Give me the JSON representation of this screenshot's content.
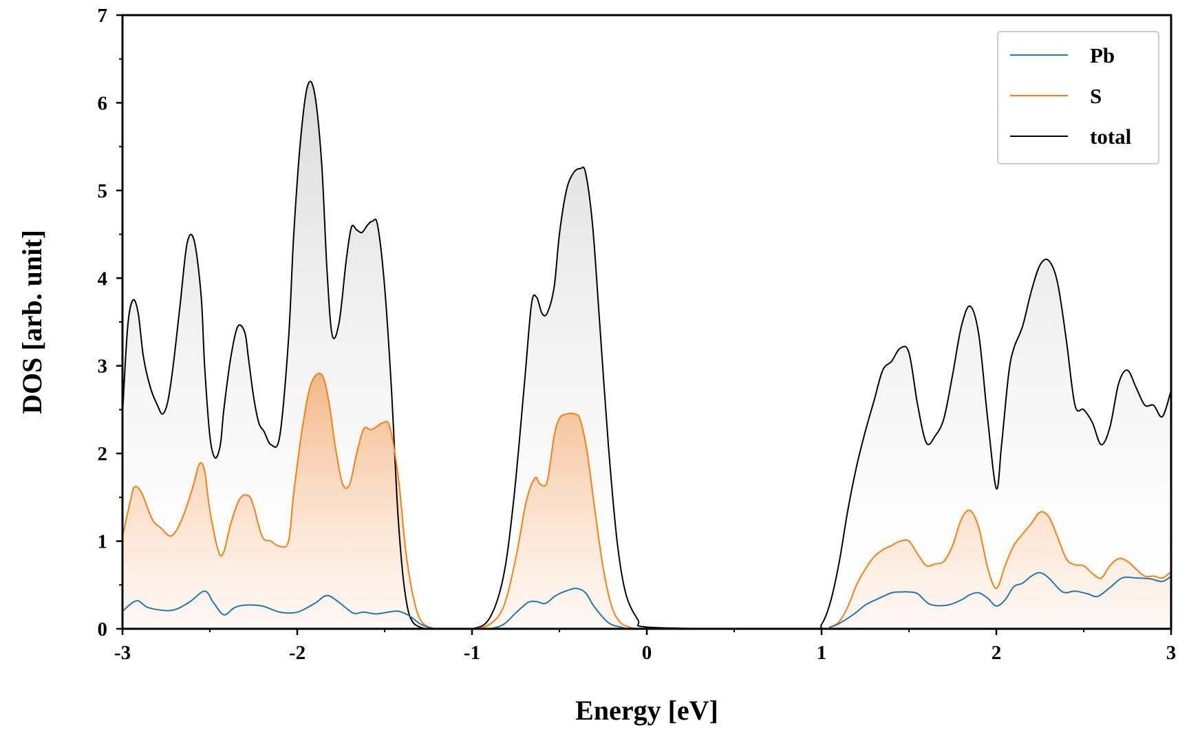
{
  "chart_data": {
    "type": "area",
    "xlabel": "Energy [eV]",
    "ylabel": "DOS [arb. unit]",
    "xlim": [
      -3,
      3
    ],
    "ylim": [
      0,
      7
    ],
    "xticks": [
      -3,
      -2,
      -1,
      0,
      1,
      2,
      3
    ],
    "xtick_labels": [
      "-3",
      "-2",
      "-1",
      "0",
      "1",
      "2",
      "3"
    ],
    "yticks": [
      0,
      1,
      2,
      3,
      4,
      5,
      6,
      7
    ],
    "ytick_labels": [
      "0",
      "1",
      "2",
      "3",
      "4",
      "5",
      "6",
      "7"
    ],
    "grid": false,
    "legend_position": "top-right",
    "series": [
      {
        "name": "Pb",
        "color": "#1f77b4",
        "fill": false,
        "x": [
          -3.0,
          -2.92,
          -2.85,
          -2.72,
          -2.62,
          -2.53,
          -2.48,
          -2.42,
          -2.36,
          -2.3,
          -2.2,
          -2.1,
          -2.0,
          -1.9,
          -1.83,
          -1.76,
          -1.68,
          -1.62,
          -1.55,
          -1.48,
          -1.42,
          -1.36,
          -1.3,
          -1.25,
          -1.2,
          -1.1,
          -1.0,
          -0.9,
          -0.82,
          -0.75,
          -0.68,
          -0.63,
          -0.58,
          -0.52,
          -0.45,
          -0.4,
          -0.35,
          -0.3,
          -0.22,
          -0.15,
          -0.1,
          0.0,
          0.5,
          1.0,
          1.05,
          1.1,
          1.18,
          1.25,
          1.32,
          1.4,
          1.45,
          1.5,
          1.55,
          1.62,
          1.72,
          1.8,
          1.85,
          1.9,
          1.95,
          2.0,
          2.05,
          2.1,
          2.15,
          2.2,
          2.25,
          2.3,
          2.38,
          2.45,
          2.52,
          2.58,
          2.65,
          2.72,
          2.8,
          2.88,
          2.95,
          3.0
        ],
        "y": [
          0.2,
          0.32,
          0.24,
          0.21,
          0.3,
          0.43,
          0.3,
          0.16,
          0.24,
          0.27,
          0.26,
          0.19,
          0.19,
          0.29,
          0.38,
          0.3,
          0.18,
          0.19,
          0.17,
          0.19,
          0.2,
          0.15,
          0.06,
          0.02,
          0.0,
          0.0,
          0.0,
          0.0,
          0.05,
          0.18,
          0.3,
          0.31,
          0.29,
          0.38,
          0.44,
          0.46,
          0.41,
          0.25,
          0.07,
          0.02,
          0.0,
          0.0,
          0.0,
          0.0,
          0.02,
          0.06,
          0.16,
          0.27,
          0.34,
          0.41,
          0.42,
          0.42,
          0.4,
          0.28,
          0.27,
          0.33,
          0.39,
          0.41,
          0.35,
          0.26,
          0.33,
          0.48,
          0.52,
          0.6,
          0.64,
          0.58,
          0.42,
          0.43,
          0.4,
          0.37,
          0.47,
          0.58,
          0.58,
          0.57,
          0.54,
          0.6
        ]
      },
      {
        "name": "S",
        "color": "#ff7f0e",
        "fill": true,
        "x": [
          -3.0,
          -2.95,
          -2.93,
          -2.89,
          -2.83,
          -2.78,
          -2.72,
          -2.66,
          -2.6,
          -2.56,
          -2.53,
          -2.5,
          -2.45,
          -2.42,
          -2.38,
          -2.33,
          -2.28,
          -2.25,
          -2.2,
          -2.15,
          -2.1,
          -2.05,
          -2.02,
          -1.97,
          -1.92,
          -1.86,
          -1.82,
          -1.78,
          -1.74,
          -1.7,
          -1.66,
          -1.62,
          -1.58,
          -1.55,
          -1.51,
          -1.47,
          -1.42,
          -1.38,
          -1.34,
          -1.3,
          -1.25,
          -1.2,
          -1.1,
          -1.0,
          -0.9,
          -0.82,
          -0.75,
          -0.69,
          -0.64,
          -0.61,
          -0.57,
          -0.53,
          -0.5,
          -0.46,
          -0.41,
          -0.38,
          -0.34,
          -0.3,
          -0.25,
          -0.2,
          -0.15,
          -0.1,
          -0.05,
          0.0,
          0.5,
          1.0,
          1.05,
          1.1,
          1.15,
          1.2,
          1.25,
          1.3,
          1.35,
          1.4,
          1.45,
          1.5,
          1.55,
          1.6,
          1.65,
          1.7,
          1.75,
          1.8,
          1.85,
          1.9,
          1.95,
          2.0,
          2.05,
          2.1,
          2.15,
          2.2,
          2.25,
          2.3,
          2.35,
          2.4,
          2.45,
          2.5,
          2.55,
          2.6,
          2.65,
          2.7,
          2.75,
          2.8,
          2.85,
          2.9,
          2.95,
          3.0
        ],
        "y": [
          1.05,
          1.5,
          1.62,
          1.55,
          1.25,
          1.15,
          1.06,
          1.25,
          1.6,
          1.88,
          1.8,
          1.35,
          0.88,
          0.88,
          1.2,
          1.48,
          1.52,
          1.4,
          1.05,
          1.0,
          0.94,
          1.0,
          1.55,
          2.3,
          2.8,
          2.9,
          2.6,
          2.05,
          1.65,
          1.65,
          2.0,
          2.28,
          2.27,
          2.3,
          2.35,
          2.3,
          1.7,
          0.9,
          0.4,
          0.12,
          0.02,
          0.0,
          0.0,
          0.0,
          0.05,
          0.25,
          0.8,
          1.45,
          1.72,
          1.65,
          1.68,
          2.2,
          2.4,
          2.45,
          2.45,
          2.38,
          2.0,
          1.4,
          0.7,
          0.25,
          0.07,
          0.02,
          0.0,
          0.0,
          0.0,
          0.0,
          0.02,
          0.08,
          0.25,
          0.5,
          0.68,
          0.82,
          0.9,
          0.95,
          1.0,
          1.0,
          0.85,
          0.72,
          0.74,
          0.77,
          0.95,
          1.25,
          1.35,
          1.15,
          0.7,
          0.46,
          0.72,
          0.95,
          1.08,
          1.2,
          1.33,
          1.28,
          1.05,
          0.8,
          0.73,
          0.72,
          0.63,
          0.58,
          0.72,
          0.8,
          0.77,
          0.68,
          0.6,
          0.6,
          0.58,
          0.65
        ]
      },
      {
        "name": "total",
        "color": "#000000",
        "fill": true,
        "x": [
          -3.0,
          -2.97,
          -2.94,
          -2.91,
          -2.88,
          -2.84,
          -2.8,
          -2.77,
          -2.74,
          -2.71,
          -2.67,
          -2.63,
          -2.59,
          -2.55,
          -2.53,
          -2.5,
          -2.47,
          -2.44,
          -2.42,
          -2.38,
          -2.34,
          -2.3,
          -2.28,
          -2.25,
          -2.22,
          -2.19,
          -2.15,
          -2.1,
          -2.05,
          -2.02,
          -1.98,
          -1.94,
          -1.9,
          -1.86,
          -1.83,
          -1.8,
          -1.76,
          -1.72,
          -1.69,
          -1.66,
          -1.63,
          -1.6,
          -1.57,
          -1.54,
          -1.5,
          -1.46,
          -1.43,
          -1.4,
          -1.37,
          -1.34,
          -1.3,
          -1.26,
          -1.22,
          -1.15,
          -1.0,
          -0.9,
          -0.82,
          -0.76,
          -0.7,
          -0.66,
          -0.63,
          -0.6,
          -0.57,
          -0.53,
          -0.5,
          -0.46,
          -0.42,
          -0.38,
          -0.35,
          -0.31,
          -0.27,
          -0.22,
          -0.17,
          -0.12,
          -0.05,
          0.0,
          0.5,
          0.95,
          1.0,
          1.05,
          1.1,
          1.15,
          1.2,
          1.25,
          1.3,
          1.35,
          1.4,
          1.45,
          1.5,
          1.55,
          1.6,
          1.65,
          1.7,
          1.75,
          1.8,
          1.85,
          1.9,
          1.95,
          2.0,
          2.03,
          2.07,
          2.1,
          2.15,
          2.2,
          2.25,
          2.3,
          2.35,
          2.4,
          2.45,
          2.5,
          2.55,
          2.6,
          2.65,
          2.7,
          2.75,
          2.8,
          2.85,
          2.9,
          2.95,
          3.0
        ],
        "y": [
          2.45,
          3.45,
          3.75,
          3.6,
          3.1,
          2.75,
          2.55,
          2.45,
          2.6,
          3.0,
          3.7,
          4.4,
          4.43,
          3.8,
          3.0,
          2.2,
          1.95,
          2.1,
          2.5,
          3.1,
          3.45,
          3.38,
          3.1,
          2.65,
          2.35,
          2.25,
          2.1,
          2.2,
          3.3,
          4.5,
          5.6,
          6.2,
          6.1,
          5.3,
          4.1,
          3.35,
          3.5,
          4.2,
          4.58,
          4.55,
          4.52,
          4.6,
          4.65,
          4.6,
          3.9,
          2.7,
          1.5,
          0.7,
          0.25,
          0.08,
          0.02,
          0.0,
          0.0,
          0.0,
          0.0,
          0.12,
          0.6,
          1.5,
          2.8,
          3.7,
          3.78,
          3.6,
          3.6,
          3.9,
          4.5,
          5.0,
          5.2,
          5.25,
          5.2,
          4.6,
          3.5,
          2.1,
          1.0,
          0.4,
          0.1,
          0.02,
          0.0,
          0.0,
          0.05,
          0.3,
          0.75,
          1.35,
          1.85,
          2.25,
          2.6,
          2.95,
          3.05,
          3.2,
          3.15,
          2.55,
          2.12,
          2.2,
          2.4,
          2.9,
          3.45,
          3.68,
          3.35,
          2.4,
          1.6,
          2.1,
          2.9,
          3.2,
          3.45,
          3.85,
          4.15,
          4.2,
          3.95,
          3.3,
          2.55,
          2.5,
          2.35,
          2.1,
          2.3,
          2.8,
          2.95,
          2.75,
          2.55,
          2.55,
          2.42,
          2.72
        ]
      }
    ]
  }
}
